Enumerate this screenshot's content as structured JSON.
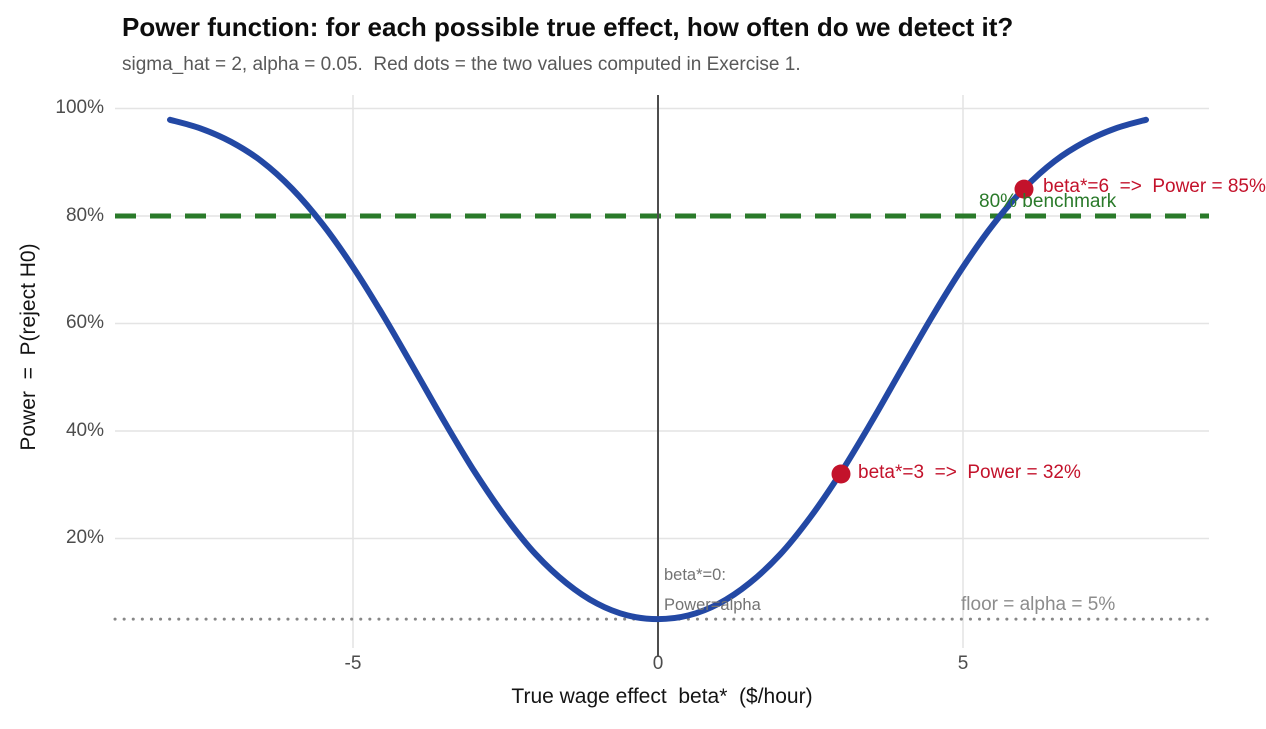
{
  "chart_data": {
    "type": "line",
    "title": "Power function: for each possible true effect, how often do we detect it?",
    "subtitle": "sigma_hat = 2, alpha = 0.05.  Red dots = the two values computed in Exercise 1.",
    "xlabel": "True wage effect  beta*  ($/hour)",
    "ylabel": "Power  =  P(reject H0)",
    "xlim": [
      -8.9,
      9.0
    ],
    "ylim": [
      0,
      1.02
    ],
    "grid": "major-only, light gray, white background",
    "legend": "none",
    "x_ticks": [
      {
        "value": -5,
        "label": "-5"
      },
      {
        "value": 0,
        "label": "0"
      },
      {
        "value": 5,
        "label": "5"
      }
    ],
    "y_ticks": [
      {
        "value": 1.0,
        "label": "100%"
      },
      {
        "value": 0.8,
        "label": "80%"
      },
      {
        "value": 0.6,
        "label": "60%"
      },
      {
        "value": 0.4,
        "label": "40%"
      },
      {
        "value": 0.2,
        "label": "20%"
      }
    ],
    "series": [
      {
        "name": "power-curve",
        "color": "#2348a4",
        "x": [
          -8,
          -7.5,
          -7,
          -6.5,
          -6,
          -5.5,
          -5,
          -4.5,
          -4,
          -3.5,
          -3,
          -2.5,
          -2,
          -1.5,
          -1,
          -0.5,
          0,
          0.5,
          1,
          1.5,
          2,
          2.5,
          3,
          3.5,
          4,
          4.5,
          5,
          5.5,
          6,
          6.5,
          7,
          7.5,
          8
        ],
        "y": [
          0.979,
          0.963,
          0.938,
          0.902,
          0.851,
          0.785,
          0.705,
          0.614,
          0.516,
          0.417,
          0.323,
          0.24,
          0.17,
          0.117,
          0.079,
          0.057,
          0.05,
          0.057,
          0.079,
          0.117,
          0.17,
          0.24,
          0.323,
          0.417,
          0.516,
          0.614,
          0.705,
          0.785,
          0.851,
          0.902,
          0.938,
          0.963,
          0.979
        ]
      }
    ],
    "key_points": [
      {
        "x": 3,
        "y": 0.32,
        "color": "#c3122b",
        "label": "beta*=3  =>  Power = 32%"
      },
      {
        "x": 6,
        "y": 0.85,
        "color": "#c3122b",
        "label": "beta*=6  =>  Power = 85%"
      }
    ],
    "reference_lines": [
      {
        "orientation": "horizontal",
        "value": 0.8,
        "style": "dashed",
        "color": "#2a7a2a",
        "label": "80% benchmark"
      },
      {
        "orientation": "horizontal",
        "value": 0.05,
        "style": "dotted",
        "color": "#878787",
        "label": "floor = alpha = 5%"
      },
      {
        "orientation": "vertical",
        "value": 0,
        "style": "solid",
        "color": "#4d4d4d",
        "label": ""
      }
    ],
    "annotations": {
      "beta6": "beta*=6  =>  Power = 85%",
      "benchmark": "80% benchmark",
      "beta3": "beta*=3  =>  Power = 32%",
      "beta0_line1": "beta*=0:",
      "beta0_line2": "Power=alpha",
      "floor": "floor = alpha = 5%"
    },
    "colors": {
      "curve": "#2348a4",
      "dots_and_red_text": "#c3122b",
      "benchmark_green": "#2a7a2a",
      "grid": "#e4e4e4",
      "vline": "#4d4d4d",
      "dotted_floor": "#878787",
      "tick_text": "#4d4d4d",
      "subtitle_text": "#595959"
    }
  }
}
